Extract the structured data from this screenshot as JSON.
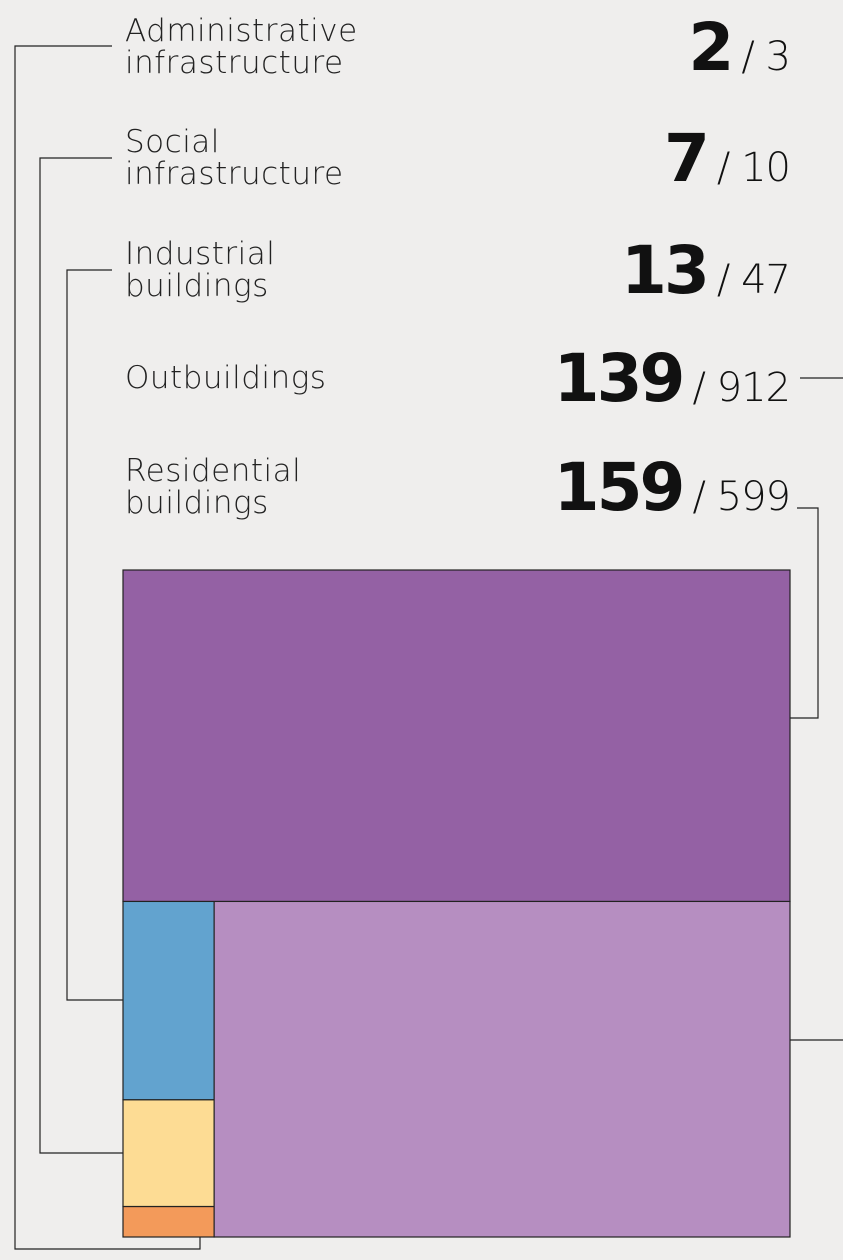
{
  "chart_data": {
    "type": "treemap",
    "categories": [
      "Administrative infrastructure",
      "Social infrastructure",
      "Industrial buildings",
      "Outbuildings",
      "Residential buildings"
    ],
    "values": [
      2,
      7,
      13,
      139,
      159
    ],
    "totals": [
      3,
      10,
      47,
      912,
      599
    ],
    "separator": "/",
    "colors": [
      "#f39a5a",
      "#fddc94",
      "#62a3cf",
      "#b68ec1",
      "#9461a4"
    ]
  }
}
